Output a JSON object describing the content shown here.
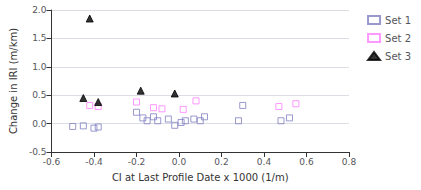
{
  "chart_data": {
    "type": "scatter",
    "xlabel": "CI at Last Profile Date x 1000 (1/m)",
    "ylabel": "Change in IRI (m/km)",
    "series": [
      {
        "name": "Set 1",
        "color": "#8080c0",
        "marker": "square",
        "x": [
          -0.5,
          -0.45,
          -0.4,
          -0.38,
          -0.2,
          -0.17,
          -0.15,
          -0.12,
          -0.1,
          -0.05,
          -0.02,
          0.01,
          0.03,
          0.07,
          0.1,
          0.12,
          0.28,
          0.3,
          0.48,
          0.52
        ],
        "values": [
          -0.05,
          -0.04,
          -0.08,
          -0.06,
          0.2,
          0.1,
          0.05,
          0.12,
          0.05,
          0.08,
          -0.03,
          0.02,
          0.05,
          0.08,
          0.05,
          0.12,
          0.05,
          0.32,
          0.05,
          0.1
        ]
      },
      {
        "name": "Set 2",
        "color": "#ff80ff",
        "marker": "square",
        "x": [
          -0.42,
          -0.38,
          -0.2,
          -0.12,
          -0.08,
          0.02,
          0.08,
          0.47,
          0.55
        ],
        "values": [
          0.32,
          0.3,
          0.38,
          0.28,
          0.26,
          0.25,
          0.4,
          0.3,
          0.35
        ]
      },
      {
        "name": "Set 3",
        "color": "#000000",
        "marker": "triangle",
        "x": [
          -0.45,
          -0.42,
          -0.38,
          -0.18,
          -0.02
        ],
        "values": [
          0.45,
          1.85,
          0.38,
          0.58,
          0.53
        ]
      }
    ],
    "xlim": [
      -0.6,
      0.8
    ],
    "ylim": [
      -0.5,
      2.0
    ],
    "xticks": [
      -0.6,
      -0.4,
      -0.2,
      {
        "value": 0,
        "label": "0.0"
      },
      0.2,
      0.4,
      0.6,
      0.8
    ],
    "yticks": [
      -0.5,
      {
        "value": 0,
        "label": "0.0"
      },
      0.5,
      {
        "value": 1,
        "label": "1.0"
      },
      1.5,
      {
        "value": 2,
        "label": "2.0"
      }
    ],
    "grid": "y",
    "legend": "right"
  }
}
